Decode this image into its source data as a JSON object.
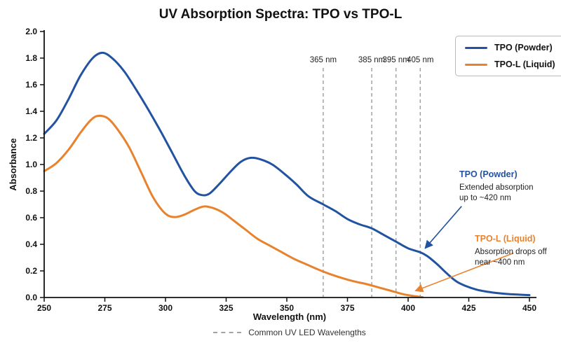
{
  "title": "UV Absorption Spectra: TPO vs TPO-L",
  "colors": {
    "tpo": "#2253a0",
    "tpol": "#e8822d",
    "dashed_line": "#a3a3a3",
    "axis": "#111111"
  },
  "legend": {
    "items": [
      {
        "label": "TPO (Powder)"
      },
      {
        "label": "TPO-L (Liquid)"
      }
    ]
  },
  "axes": {
    "x": {
      "label": "Wavelength (nm)",
      "min": 250,
      "max": 450,
      "ticks": [
        250,
        275,
        300,
        325,
        350,
        375,
        400,
        425,
        450
      ]
    },
    "y": {
      "label": "Absorbance",
      "min": 0,
      "max": 2,
      "ticks": [
        0.0,
        0.2,
        0.4,
        0.6,
        0.8,
        1.0,
        1.2,
        1.4,
        1.6,
        1.8,
        2.0
      ]
    }
  },
  "led_lines": [
    {
      "wavelength": 365,
      "label": "365 nm"
    },
    {
      "wavelength": 385,
      "label": "385 nm"
    },
    {
      "wavelength": 395,
      "label": "395 nm"
    },
    {
      "wavelength": 405,
      "label": "405 nm"
    }
  ],
  "led_legend_label": "Common UV LED Wavelengths",
  "annotations": {
    "tpo": {
      "title": "TPO (Powder)",
      "line1": "Extended absorption",
      "line2": "up to ~420 nm",
      "target": {
        "wavelength": 407,
        "absorbance": 0.37
      }
    },
    "tpol": {
      "title": "TPO-L (Liquid)",
      "line1": "Absorption drops off",
      "line2": "near ~400 nm",
      "target": {
        "wavelength": 403,
        "absorbance": 0.05
      }
    }
  },
  "chart_data": {
    "type": "line",
    "title": "UV Absorption Spectra: TPO vs TPO-L",
    "xlabel": "Wavelength (nm)",
    "ylabel": "Absorbance",
    "xlim": [
      250,
      450
    ],
    "ylim": [
      0,
      2
    ],
    "grid": false,
    "legend_position": "upper right",
    "vlines": {
      "wavelengths": [
        365,
        385,
        395,
        405
      ],
      "style": "dashed",
      "label": "Common UV LED Wavelengths"
    },
    "series": [
      {
        "name": "TPO (Powder)",
        "color": "#2253a0",
        "x": [
          250,
          255,
          260,
          265,
          270,
          274,
          278,
          283,
          288,
          293,
          298,
          303,
          308,
          312,
          315,
          318,
          322,
          327,
          331,
          335,
          339,
          344,
          349,
          354,
          359,
          365,
          370,
          375,
          380,
          385,
          390,
          395,
          400,
          405,
          408,
          412,
          416,
          420,
          424,
          428,
          432,
          436,
          440,
          445,
          450
        ],
        "y": [
          1.23,
          1.33,
          1.49,
          1.67,
          1.8,
          1.84,
          1.8,
          1.7,
          1.56,
          1.41,
          1.25,
          1.08,
          0.91,
          0.8,
          0.77,
          0.78,
          0.85,
          0.95,
          1.02,
          1.05,
          1.04,
          1.0,
          0.93,
          0.85,
          0.76,
          0.7,
          0.65,
          0.59,
          0.55,
          0.52,
          0.47,
          0.42,
          0.37,
          0.34,
          0.31,
          0.25,
          0.18,
          0.12,
          0.085,
          0.06,
          0.045,
          0.035,
          0.028,
          0.022,
          0.018
        ]
      },
      {
        "name": "TPO-L (Liquid)",
        "color": "#e8822d",
        "x": [
          250,
          255,
          260,
          265,
          269,
          272,
          276,
          280,
          285,
          290,
          295,
          300,
          304,
          308,
          312,
          316,
          320,
          324,
          328,
          333,
          338,
          343,
          348,
          353,
          358,
          363,
          368,
          373,
          378,
          383,
          388,
          393,
          398,
          402,
          406
        ],
        "y": [
          0.95,
          1.01,
          1.11,
          1.24,
          1.33,
          1.365,
          1.35,
          1.27,
          1.13,
          0.94,
          0.75,
          0.63,
          0.605,
          0.625,
          0.66,
          0.685,
          0.67,
          0.635,
          0.58,
          0.51,
          0.44,
          0.39,
          0.34,
          0.29,
          0.25,
          0.21,
          0.175,
          0.145,
          0.12,
          0.1,
          0.075,
          0.05,
          0.025,
          0.012,
          0.002
        ]
      }
    ]
  }
}
